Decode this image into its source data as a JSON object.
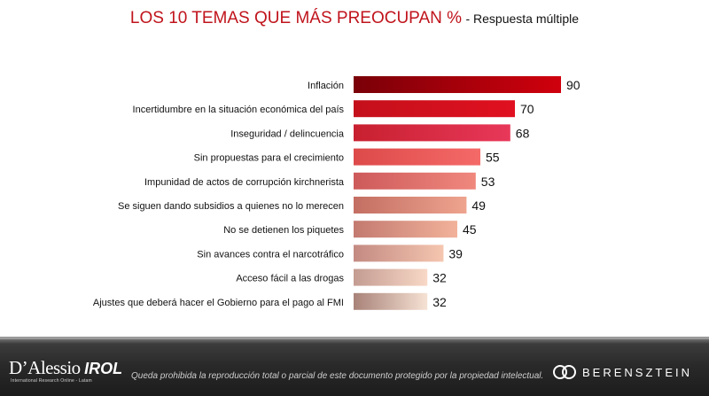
{
  "header": {
    "title": "LOS 10 TEMAS QUE MÁS PREOCUPAN %",
    "subtitle": "- Respuesta múltiple"
  },
  "chart_data": {
    "type": "bar",
    "orientation": "horizontal",
    "title": "LOS 10 TEMAS QUE MÁS PREOCUPAN %",
    "subtitle": "- Respuesta múltiple",
    "categories": [
      "Inflación",
      "Incertidumbre en la situación económica del país",
      "Inseguridad / delincuencia",
      "Sin propuestas para el crecimiento",
      "Impunidad de actos de corrupción kirchnerista",
      "Se siguen dando subsidios a quienes no lo merecen",
      "No se detienen los piquetes",
      "Sin avances contra el narcotráfico",
      "Acceso fácil a las drogas",
      "Ajustes que deberá hacer el Gobierno para el pago al FMI"
    ],
    "values": [
      90,
      70,
      68,
      55,
      53,
      49,
      45,
      39,
      32,
      32
    ],
    "colors_left": [
      "#7a0008",
      "#c4101b",
      "#c8202f",
      "#dd4a4a",
      "#cd5a5a",
      "#c36e62",
      "#c37a70",
      "#c38a82",
      "#c49c92",
      "#a88278"
    ],
    "colors_right": [
      "#d0000d",
      "#e01020",
      "#e8385a",
      "#f46a68",
      "#f0887e",
      "#eea48f",
      "#f2b29a",
      "#f5c6b0",
      "#f8d8c6",
      "#f6e2d4"
    ],
    "xlim": [
      0,
      100
    ],
    "grid": false,
    "legend": "none"
  },
  "footer": {
    "brand_left_main": "D’Alessio",
    "brand_left_bold": "IROL",
    "brand_left_sub": "International Research Online - Latam",
    "disclaimer": "Queda prohibida la reproducción total o parcial de este documento protegido por la propiedad intelectual.",
    "brand_right": "BERENSZTEIN"
  }
}
